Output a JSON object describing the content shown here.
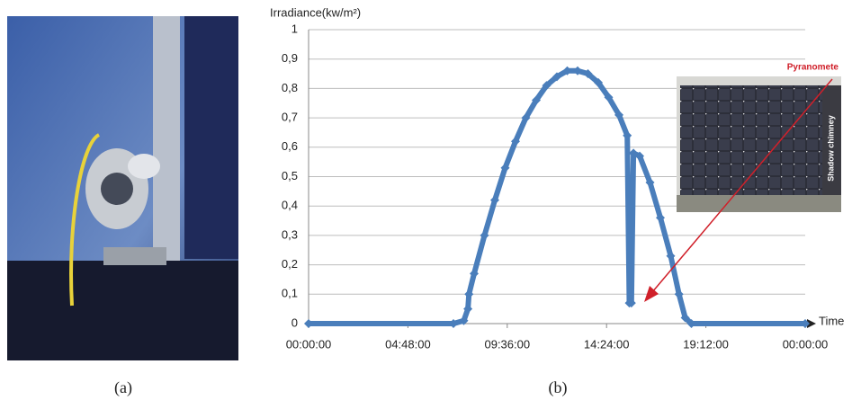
{
  "chart_data": {
    "type": "line",
    "y_label": "Irradiance(kw/m²)",
    "x_label": "Time",
    "x": [
      0,
      7.0,
      7.5,
      7.7,
      7.75,
      8,
      8.5,
      9,
      9.5,
      10,
      10.5,
      11,
      11.5,
      12,
      12.5,
      13,
      13.5,
      14,
      14.5,
      15,
      15.4,
      15.5,
      15.6,
      15.7,
      16,
      16.5,
      17,
      17.5,
      17.9,
      18.2,
      18.5,
      24
    ],
    "values": [
      0,
      0,
      0.01,
      0.05,
      0.1,
      0.17,
      0.3,
      0.42,
      0.53,
      0.62,
      0.7,
      0.76,
      0.81,
      0.84,
      0.86,
      0.86,
      0.85,
      0.82,
      0.77,
      0.71,
      0.64,
      0.07,
      0.07,
      0.58,
      0.57,
      0.48,
      0.36,
      0.23,
      0.1,
      0.02,
      0,
      0
    ],
    "color": "#4a7ebb",
    "xlim": [
      0,
      24
    ],
    "xticks": [
      {
        "value": 0,
        "label": "00:00:00"
      },
      {
        "value": 4.8,
        "label": "04:48:00"
      },
      {
        "value": 9.6,
        "label": "09:36:00"
      },
      {
        "value": 14.4,
        "label": "14:24:00"
      },
      {
        "value": 19.2,
        "label": "19:12:00"
      },
      {
        "value": 24,
        "label": "00:00:00"
      }
    ],
    "ylim": [
      0,
      1
    ],
    "yticks": [
      0,
      {
        "value": 0.1,
        "label": "0,1"
      },
      {
        "value": 0.2,
        "label": "0,2"
      },
      {
        "value": 0.3,
        "label": "0,3"
      },
      {
        "value": 0.4,
        "label": "0,4"
      },
      {
        "value": 0.5,
        "label": "0,5"
      },
      {
        "value": 0.6,
        "label": "0,6"
      },
      {
        "value": 0.7,
        "label": "0,7"
      },
      {
        "value": 0.8,
        "label": "0,8"
      },
      {
        "value": 0.9,
        "label": "0,9"
      },
      1
    ],
    "grid": true,
    "annotations": [
      "Pyranomete",
      "Shadow chimney"
    ]
  },
  "figure": {
    "captions": [
      "(a)",
      "(b)"
    ]
  }
}
